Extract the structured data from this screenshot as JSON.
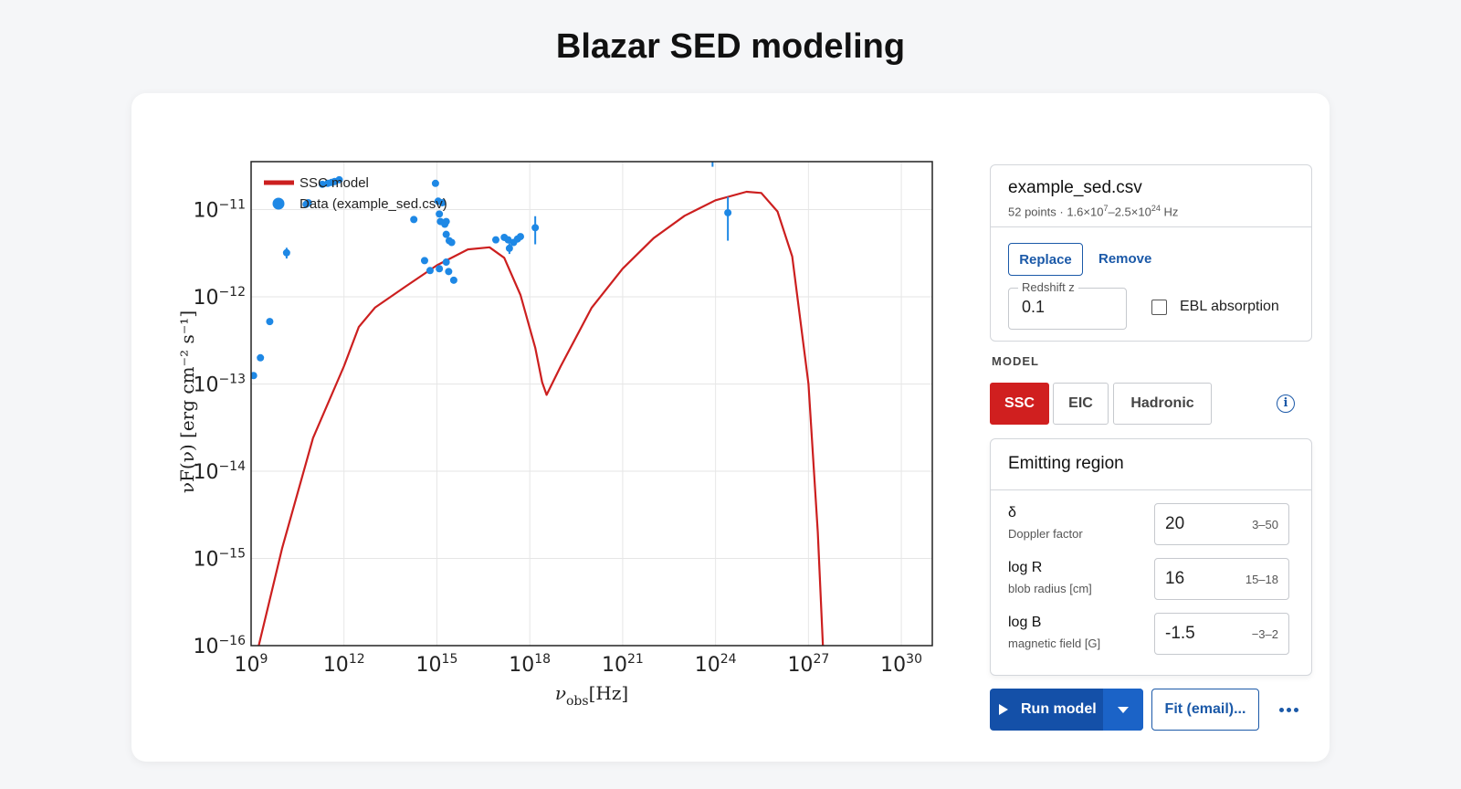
{
  "page": {
    "title": "Blazar SED modeling"
  },
  "chart_data": {
    "type": "scatter",
    "x_scale": "log",
    "y_scale": "log",
    "xlim": [
      1000000000.0,
      1e+31
    ],
    "ylim": [
      1e-16,
      1e-10
    ],
    "grid": true,
    "legend_position": "top-left",
    "xlabel_main": "ν",
    "xlabel_sub": "obs",
    "xlabel_unit": "[Hz]",
    "ylabel": "νF(ν) [erg cm⁻² s⁻¹]",
    "x_ticks": [
      {
        "base": "10",
        "exp": "9",
        "value": 1000000000.0
      },
      {
        "base": "10",
        "exp": "12",
        "value": 1000000000000.0
      },
      {
        "base": "10",
        "exp": "15",
        "value": 1000000000000000.0
      },
      {
        "base": "10",
        "exp": "18",
        "value": 1e+18
      },
      {
        "base": "10",
        "exp": "21",
        "value": 1e+21
      },
      {
        "base": "10",
        "exp": "24",
        "value": 1e+24
      },
      {
        "base": "10",
        "exp": "27",
        "value": 1e+27
      },
      {
        "base": "10",
        "exp": "30",
        "value": 1e+30
      }
    ],
    "y_ticks": [
      {
        "base": "10",
        "exp": "−11",
        "value": 1e-11
      },
      {
        "base": "10",
        "exp": "−12",
        "value": 1e-12
      },
      {
        "base": "10",
        "exp": "−13",
        "value": 1e-13
      },
      {
        "base": "10",
        "exp": "−14",
        "value": 1e-14
      },
      {
        "base": "10",
        "exp": "−15",
        "value": 1e-15
      },
      {
        "base": "10",
        "exp": "−16",
        "value": 1e-16
      }
    ],
    "series": [
      {
        "name": "SSC model",
        "kind": "line",
        "color": "#cc1f1f",
        "points": [
          [
            1500000000.0,
            7.9e-17
          ],
          [
            10000000000.0,
            1.3e-15
          ],
          [
            100000000000.0,
            2.4e-14
          ],
          [
            1000000000000.0,
            1.6e-13
          ],
          [
            3000000000000.0,
            4.5e-13
          ],
          [
            10000000000000.0,
            7.5e-13
          ],
          [
            100000000000000.0,
            1.32e-12
          ],
          [
            1000000000000000.0,
            2.3e-12
          ],
          [
            1e+16,
            3.5e-12
          ],
          [
            5e+16,
            3.7e-12
          ],
          [
            1.5e+17,
            2.8e-12
          ],
          [
            5e+17,
            1.05e-12
          ],
          [
            1.5e+18,
            2.6e-13
          ],
          [
            2.5e+18,
            1.05e-13
          ],
          [
            3.5e+18,
            7.5e-14
          ],
          [
            1e+19,
            1.6e-13
          ],
          [
            1e+20,
            7.5e-13
          ],
          [
            1e+21,
            2.1e-12
          ],
          [
            1e+22,
            4.7e-12
          ],
          [
            1e+23,
            8.5e-12
          ],
          [
            1e+24,
            1.28e-11
          ],
          [
            1e+25,
            1.6e-11
          ],
          [
            3e+25,
            1.55e-11
          ],
          [
            1e+26,
            9.5e-12
          ],
          [
            3e+26,
            2.9e-12
          ],
          [
            1e+27,
            1e-13
          ],
          [
            2e+27,
            2e-15
          ],
          [
            3.1e+27,
            6.5e-17
          ]
        ]
      },
      {
        "name": "Data (example_sed.csv)",
        "kind": "scatter",
        "color": "#1e88e5",
        "points": [
          [
            1200000000.0,
            1.25e-13,
            0
          ],
          [
            2000000000.0,
            2e-13,
            0
          ],
          [
            4000000000.0,
            5.2e-13,
            0
          ],
          [
            14000000000.0,
            3.2e-12,
            4.5e-13
          ],
          [
            60000000000.0,
            1.15e-11,
            0
          ],
          [
            70000000000.0,
            1.2e-11,
            0
          ],
          [
            200000000000.0,
            1.95e-11,
            0
          ],
          [
            300000000000.0,
            2e-11,
            0
          ],
          [
            400000000000.0,
            2.05e-11,
            0
          ],
          [
            500000000000.0,
            2.1e-11,
            0
          ],
          [
            700000000000.0,
            2.2e-11,
            0
          ],
          [
            180000000000000.0,
            7.7e-12,
            0
          ],
          [
            900000000000000.0,
            2e-11,
            0
          ],
          [
            1100000000000000.0,
            1.25e-11,
            0
          ],
          [
            1200000000000000.0,
            8.9e-12,
            0
          ],
          [
            1300000000000000.0,
            7.3e-12,
            0
          ],
          [
            1500000000000000.0,
            1.2e-11,
            0
          ],
          [
            1800000000000000.0,
            6.8e-12,
            0
          ],
          [
            2000000000000000.0,
            7.3e-12,
            0
          ],
          [
            2000000000000000.0,
            5.2e-12,
            0
          ],
          [
            2500000000000000.0,
            4.4e-12,
            0
          ],
          [
            3000000000000000.0,
            4.2e-12,
            0
          ],
          [
            400000000000000.0,
            2.6e-12,
            0
          ],
          [
            600000000000000.0,
            2e-12,
            0
          ],
          [
            1200000000000000.0,
            2.1e-12,
            0
          ],
          [
            2000000000000000.0,
            2.5e-12,
            0
          ],
          [
            2400000000000000.0,
            1.95e-12,
            0
          ],
          [
            3500000000000000.0,
            1.55e-12,
            0
          ],
          [
            8e+16,
            4.5e-12,
            0
          ],
          [
            1.5e+17,
            4.8e-12,
            0
          ],
          [
            2e+17,
            4.5e-12,
            0
          ],
          [
            3e+17,
            4.2e-12,
            0
          ],
          [
            4e+17,
            4.6e-12,
            0
          ],
          [
            5e+17,
            4.9e-12,
            0
          ],
          [
            2.2e+17,
            3.6e-12,
            5e-13
          ],
          [
            1.5e+18,
            6.2e-12,
            2.2e-12
          ],
          [
            8e+23,
            3.9e-11,
            8e-12
          ],
          [
            2.5e+24,
            9.2e-12,
            4.8e-12
          ]
        ]
      }
    ]
  },
  "sidebar": {
    "file": {
      "name": "example_sed.csv",
      "meta_prefix": "52 points · 1.6×10",
      "meta_exp1": "7",
      "meta_mid": "–2.5×10",
      "meta_exp2": "24",
      "meta_unit": " Hz",
      "replace_label": "Replace",
      "remove_label": "Remove",
      "redshift_label": "Redshift z",
      "redshift_value": "0.1",
      "ebl_label": "EBL absorption",
      "ebl_checked": false
    },
    "model": {
      "heading": "MODEL",
      "tabs": [
        {
          "label": "SSC",
          "active": true
        },
        {
          "label": "EIC",
          "active": false
        },
        {
          "label": "Hadronic",
          "active": false
        }
      ],
      "info_glyph": "i"
    },
    "region": {
      "title": "Emitting region",
      "params": [
        {
          "symbol": "δ",
          "desc": "Doppler factor",
          "value": "20",
          "range": "3–50"
        },
        {
          "symbol": "log R",
          "desc": "blob radius [cm]",
          "value": "16",
          "range": "15–18"
        },
        {
          "symbol": "log B",
          "desc": "magnetic field [G]",
          "value": "-1.5",
          "range": "−3–2"
        }
      ]
    },
    "actions": {
      "run_label": "Run model",
      "fit_label": "Fit (email)..."
    }
  }
}
